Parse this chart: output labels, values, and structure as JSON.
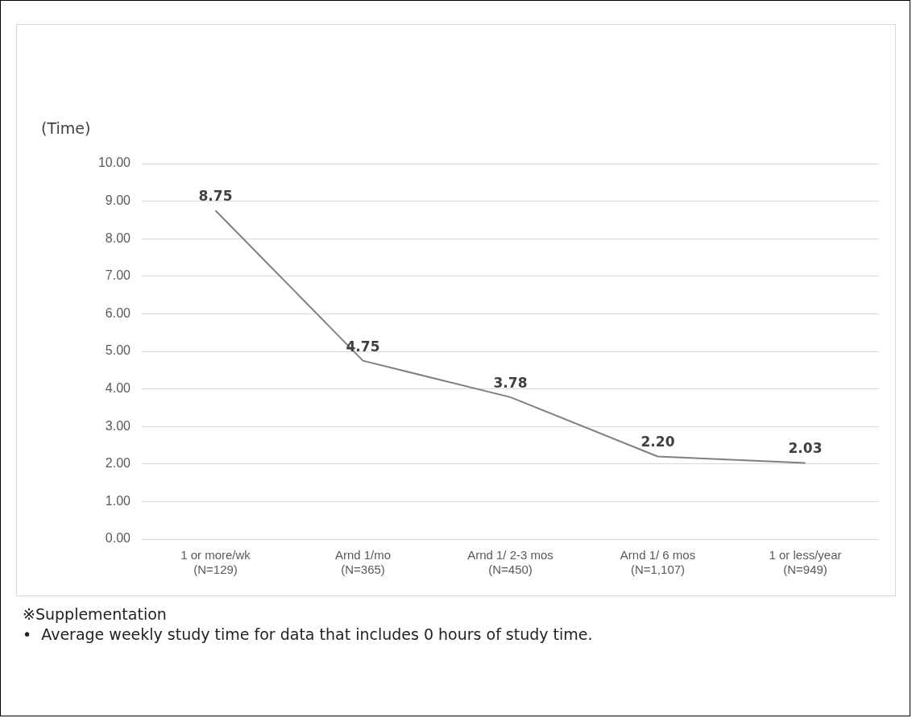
{
  "chart_data": {
    "type": "line",
    "ylabel": "(Time)",
    "categories": [
      "1 or more/wk\n(N=129)",
      "Arnd 1/mo\n(N=365)",
      "Arnd 1/ 2-3 mos\n(N=450)",
      "Arnd 1/ 6 mos\n(N=1,107)",
      "1 or less/year\n(N=949)"
    ],
    "series": [
      {
        "color": "#808080",
        "values": [
          8.75,
          4.75,
          3.78,
          2.2,
          2.03
        ]
      }
    ],
    "ylim": [
      0,
      10
    ],
    "yticks": [
      {
        "value": 0,
        "label": "0.00"
      },
      {
        "value": 1,
        "label": "1.00"
      },
      {
        "value": 2,
        "label": "2.00"
      },
      {
        "value": 3,
        "label": "3.00"
      },
      {
        "value": 4,
        "label": "4.00"
      },
      {
        "value": 5,
        "label": "5.00"
      },
      {
        "value": 6,
        "label": "6.00"
      },
      {
        "value": 7,
        "label": "7.00"
      },
      {
        "value": 8,
        "label": "8.00"
      },
      {
        "value": 9,
        "label": "9.00"
      },
      {
        "value": 10,
        "label": "10.00"
      }
    ],
    "value_labels": [
      "8.75",
      "4.75",
      "3.78",
      "2.20",
      "2.03"
    ],
    "grid": "y",
    "legend": false,
    "marker": "none",
    "line_style": "solid",
    "annotations": [
      "※Supplementation",
      "•  Average weekly study time for data that includes 0 hours of study time."
    ]
  }
}
